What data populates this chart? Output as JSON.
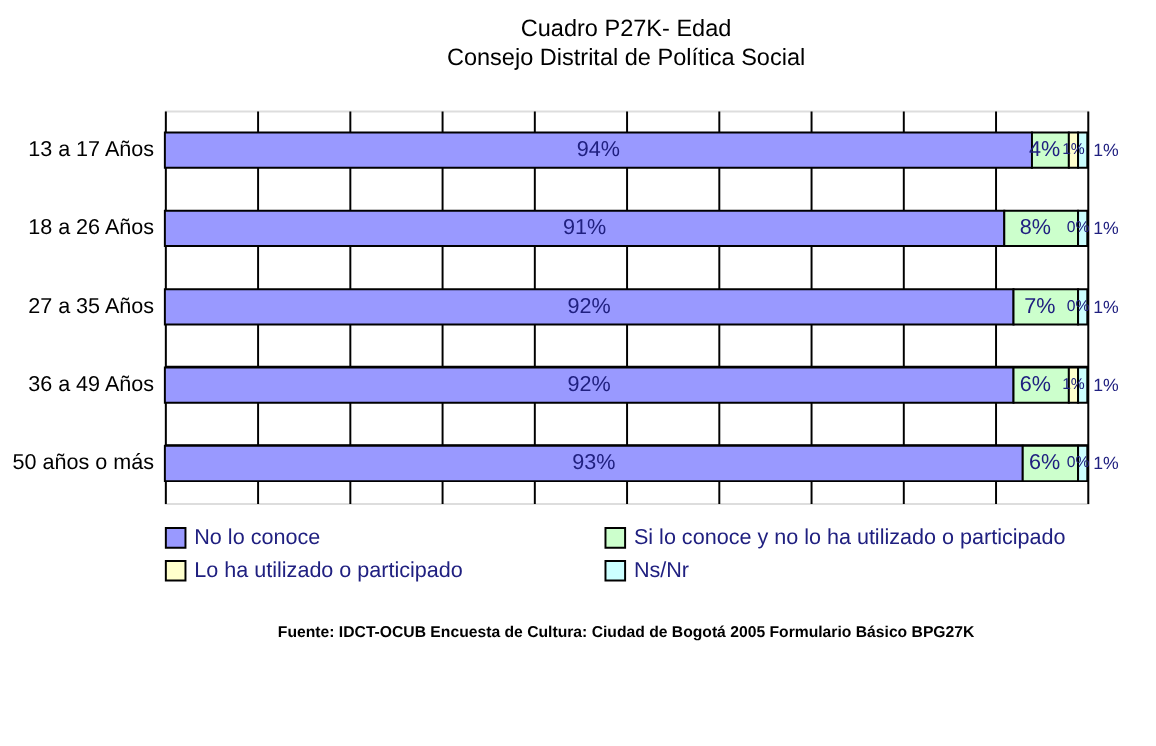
{
  "chart_data": {
    "type": "bar",
    "orientation": "horizontal",
    "stacked": true,
    "title": "Cuadro P27K- Edad",
    "subtitle": "Consejo Distrital de Política Social",
    "categories": [
      "13 a 17 Años",
      "18 a 26 Años",
      "27 a 35 Años",
      "36 a 49 Años",
      "50 años o más"
    ],
    "series": [
      {
        "name": "No lo conoce",
        "color": "#9999ff",
        "values": [
          94,
          91,
          92,
          92,
          93
        ],
        "value_labels": [
          "94%",
          "91%",
          "92%",
          "92%",
          "93%"
        ]
      },
      {
        "name": "Si lo conoce y no lo ha utilizado o participado",
        "color": "#ccffcc",
        "values": [
          4,
          8,
          7,
          6,
          6
        ],
        "value_labels": [
          "4%",
          "8%",
          "7%",
          "6%",
          "6%"
        ]
      },
      {
        "name": "Lo ha utilizado o participado",
        "color": "#ffffcc",
        "values": [
          1,
          0,
          0,
          1,
          0
        ],
        "value_labels": [
          "1%",
          "0%",
          "0%",
          "1%",
          "0%"
        ]
      },
      {
        "name": "Ns/Nr",
        "color": "#ccffff",
        "values": [
          1,
          1,
          1,
          1,
          1
        ],
        "value_labels": [
          "1%",
          "1%",
          "1%",
          "1%",
          "1%"
        ]
      }
    ],
    "tick_labels": "y",
    "grid": true,
    "legend": "bottom",
    "annotations": [
      "Fuente: IDCT-OCUB Encuesta de Cultura: Ciudad de Bogotá 2005 Formulario Básico BPG27K"
    ]
  }
}
